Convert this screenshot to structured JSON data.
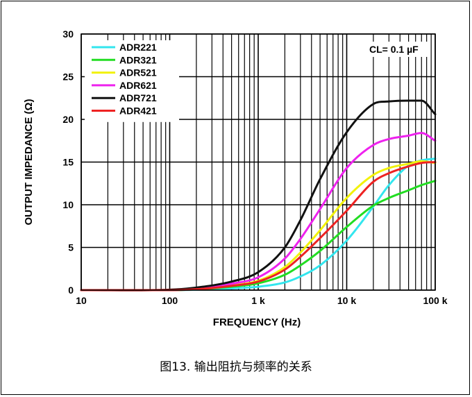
{
  "caption": "图13. 输出阻抗与频率的关系",
  "chart_data": {
    "type": "line",
    "xscale": "log",
    "xlim": [
      10,
      100000
    ],
    "ylim": [
      0,
      30
    ],
    "xlabel": "FREQUENCY (Hz)",
    "ylabel": "OUTPUT IMPEDANCE (Ω)",
    "xticks": [
      10,
      100,
      1000,
      10000,
      100000
    ],
    "xtick_labels": [
      "10",
      "100",
      "1 k",
      "10 k",
      "100 k"
    ],
    "yticks": [
      0,
      5,
      10,
      15,
      20,
      25,
      30
    ],
    "ytick_labels": [
      "0",
      "5",
      "10",
      "15",
      "20",
      "25",
      "30"
    ],
    "grid": true,
    "legend_position": "top-left",
    "annotation": "CL= 0.1 µF",
    "x": [
      10,
      100,
      200,
      500,
      1000,
      2000,
      3000,
      5000,
      10000,
      20000,
      30000,
      50000,
      70000,
      100000
    ],
    "series": [
      {
        "name": "ADR221",
        "color": "#33e6ee",
        "values": [
          0,
          0,
          0.05,
          0.2,
          0.4,
          0.9,
          1.6,
          2.9,
          5.8,
          9.8,
          12.3,
          14.6,
          15.2,
          15.4
        ]
      },
      {
        "name": "ADR321",
        "color": "#22dd22",
        "values": [
          0,
          0,
          0.1,
          0.4,
          0.8,
          1.8,
          2.9,
          4.6,
          7.4,
          9.9,
          10.8,
          11.7,
          12.3,
          12.8
        ]
      },
      {
        "name": "ADR521",
        "color": "#f2f20a",
        "values": [
          0,
          0,
          0.15,
          0.55,
          1.1,
          2.7,
          4.4,
          7.0,
          10.8,
          13.5,
          14.3,
          14.8,
          15.1,
          14.9
        ]
      },
      {
        "name": "ADR621",
        "color": "#ee22ee",
        "values": [
          0,
          0,
          0.2,
          0.75,
          1.5,
          3.7,
          6.0,
          9.5,
          14.3,
          17.0,
          17.7,
          18.1,
          18.4,
          17.5
        ]
      },
      {
        "name": "ADR721",
        "color": "#111111",
        "values": [
          0,
          0.05,
          0.3,
          1.0,
          2.1,
          5.0,
          8.2,
          13.0,
          18.5,
          21.8,
          22.1,
          22.2,
          22.2,
          20.6
        ]
      },
      {
        "name": "ADR421",
        "color": "#ee2222",
        "values": [
          0,
          0,
          0.1,
          0.5,
          1.0,
          2.4,
          3.9,
          6.1,
          9.3,
          12.7,
          13.7,
          14.5,
          14.9,
          15.0
        ]
      }
    ]
  }
}
